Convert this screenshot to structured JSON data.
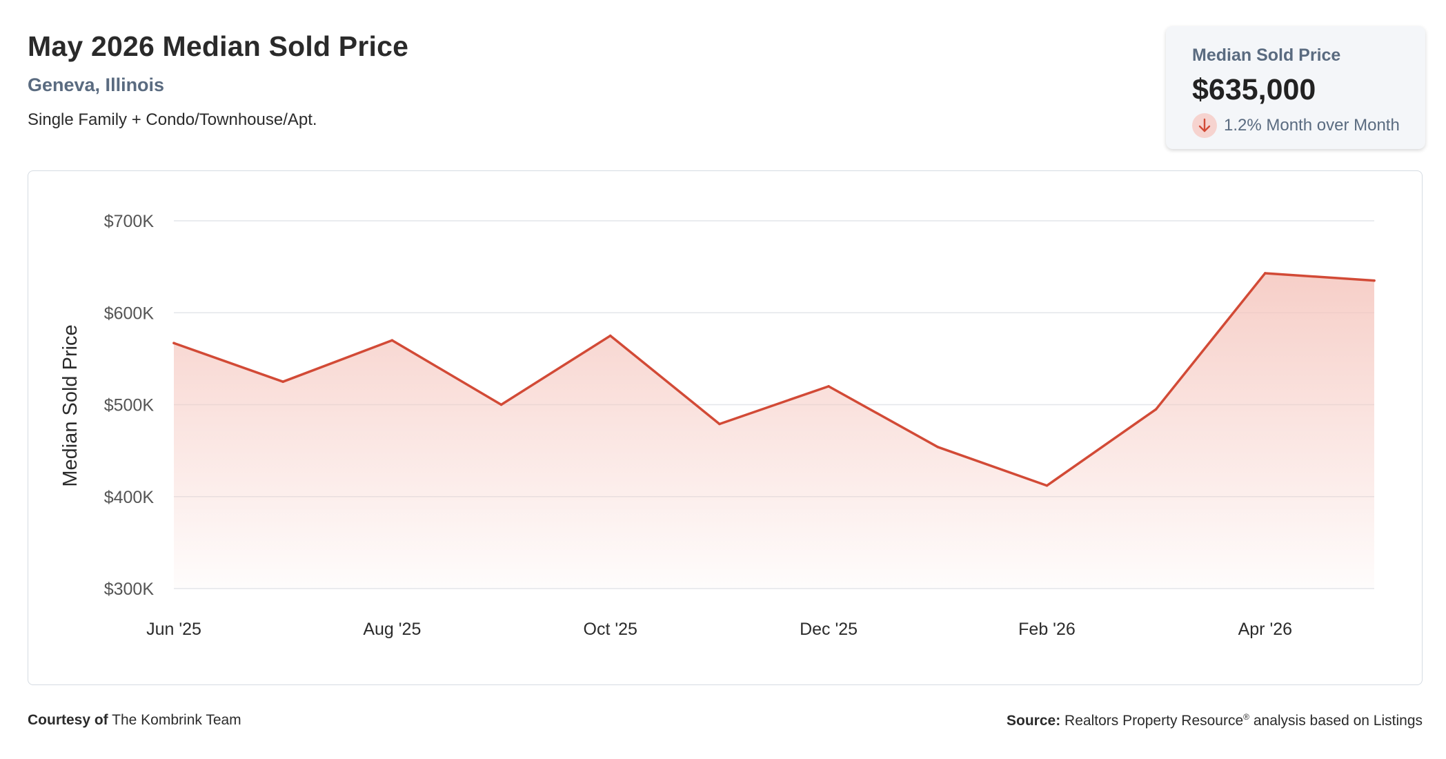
{
  "header": {
    "title": "May 2026 Median Sold Price",
    "location": "Geneva, Illinois",
    "segment": "Single Family + Condo/Townhouse/Apt."
  },
  "stat_card": {
    "label": "Median Sold Price",
    "value": "$635,000",
    "change_text": "1.2% Month over Month",
    "direction_icon": "arrow-down-icon",
    "down_color": "#d24a36",
    "down_bg": "#f6d3cf"
  },
  "footer": {
    "courtesy_label": "Courtesy of",
    "courtesy_value": "The Kombrink Team",
    "source_label": "Source:",
    "source_value": "Realtors Property Resource",
    "source_mark": "®",
    "source_suffix": "analysis based on Listings"
  },
  "chart_data": {
    "type": "area",
    "ylabel": "Median Sold Price",
    "xlabel": "",
    "ylim": [
      300000,
      700000
    ],
    "yticks": [
      300000,
      400000,
      500000,
      600000,
      700000
    ],
    "ytick_labels": [
      "$300K",
      "$400K",
      "$500K",
      "$600K",
      "$700K"
    ],
    "x": [
      "Jun '25",
      "Jul '25",
      "Aug '25",
      "Sep '25",
      "Oct '25",
      "Nov '25",
      "Dec '25",
      "Jan '26",
      "Feb '26",
      "Mar '26",
      "Apr '26",
      "May '26"
    ],
    "xtick_labels": [
      "Jun '25",
      "Aug '25",
      "Oct '25",
      "Dec '25",
      "Feb '26",
      "Apr '26"
    ],
    "series": [
      {
        "values": [
          567000,
          525000,
          570000,
          500000,
          575000,
          479000,
          520000,
          454000,
          412000,
          495000,
          643000,
          635000
        ],
        "color": "#d24a36"
      }
    ],
    "grid": true,
    "legend": "none"
  }
}
